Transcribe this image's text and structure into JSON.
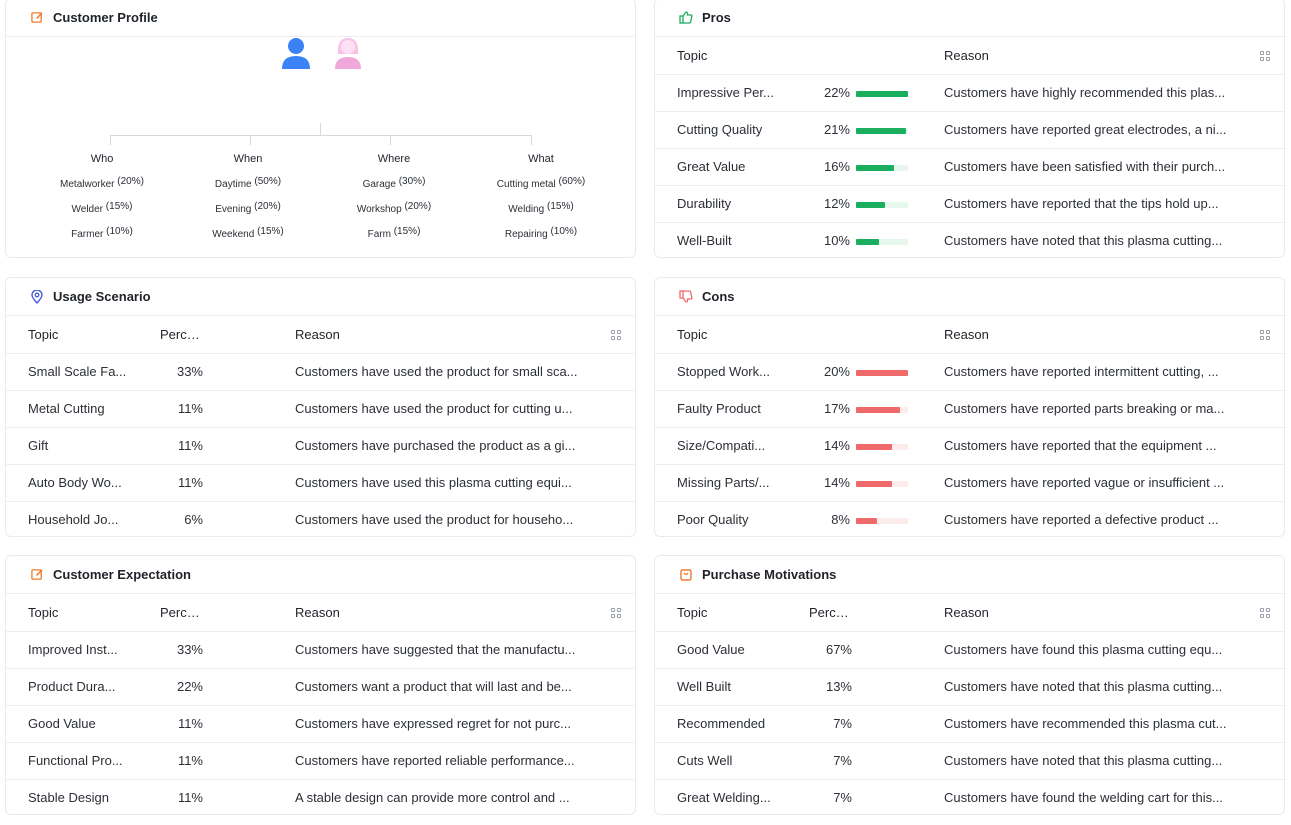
{
  "profile": {
    "title": "Customer Profile",
    "columns": [
      {
        "header": "Who",
        "items": [
          {
            "label": "Metalworker",
            "pct": "(20%)"
          },
          {
            "label": "Welder",
            "pct": "(15%)"
          },
          {
            "label": "Farmer",
            "pct": "(10%)"
          }
        ]
      },
      {
        "header": "When",
        "items": [
          {
            "label": "Daytime",
            "pct": "(50%)"
          },
          {
            "label": "Evening",
            "pct": "(20%)"
          },
          {
            "label": "Weekend",
            "pct": "(15%)"
          }
        ]
      },
      {
        "header": "Where",
        "items": [
          {
            "label": "Garage",
            "pct": "(30%)"
          },
          {
            "label": "Workshop",
            "pct": "(20%)"
          },
          {
            "label": "Farm",
            "pct": "(15%)"
          }
        ]
      },
      {
        "header": "What",
        "items": [
          {
            "label": "Cutting metal",
            "pct": "(60%)"
          },
          {
            "label": "Welding",
            "pct": "(15%)"
          },
          {
            "label": "Repairing",
            "pct": "(10%)"
          }
        ]
      }
    ]
  },
  "pros": {
    "title": "Pros",
    "headers": {
      "topic": "Topic",
      "reason": "Reason"
    },
    "color": "#1aae5f",
    "track": "#e6f7ed",
    "rows": [
      {
        "topic": "Impressive Per...",
        "pct": "22%",
        "value": 1.0,
        "reason": "Customers have highly recommended this plas..."
      },
      {
        "topic": "Cutting Quality",
        "pct": "21%",
        "value": 0.96,
        "reason": "Customers have reported great electrodes, a ni..."
      },
      {
        "topic": "Great Value",
        "pct": "16%",
        "value": 0.73,
        "reason": "Customers have been satisfied with their purch..."
      },
      {
        "topic": "Durability",
        "pct": "12%",
        "value": 0.55,
        "reason": "Customers have reported that the tips hold up..."
      },
      {
        "topic": "Well-Built",
        "pct": "10%",
        "value": 0.45,
        "reason": "Customers have noted that this plasma cutting..."
      }
    ]
  },
  "usage": {
    "title": "Usage Scenario",
    "headers": {
      "topic": "Topic",
      "percent": "Percent",
      "reason": "Reason"
    },
    "rows": [
      {
        "topic": "Small Scale Fa...",
        "pct": "33%",
        "reason": "Customers have used the product for small sca..."
      },
      {
        "topic": "Metal Cutting",
        "pct": "11%",
        "reason": "Customers have used the product for cutting u..."
      },
      {
        "topic": "Gift",
        "pct": "11%",
        "reason": "Customers have purchased the product as a gi..."
      },
      {
        "topic": "Auto Body Wo...",
        "pct": "11%",
        "reason": "Customers have used this plasma cutting equi..."
      },
      {
        "topic": "Household Jo...",
        "pct": "6%",
        "reason": "Customers have used the product for househo..."
      }
    ]
  },
  "cons": {
    "title": "Cons",
    "headers": {
      "topic": "Topic",
      "reason": "Reason"
    },
    "color": "#f0696a",
    "track": "#fdecec",
    "rows": [
      {
        "topic": "Stopped Work...",
        "pct": "20%",
        "value": 1.0,
        "reason": "Customers have reported intermittent cutting, ..."
      },
      {
        "topic": "Faulty Product",
        "pct": "17%",
        "value": 0.85,
        "reason": "Customers have reported parts breaking or ma..."
      },
      {
        "topic": "Size/Compati...",
        "pct": "14%",
        "value": 0.7,
        "reason": "Customers have reported that the equipment ..."
      },
      {
        "topic": "Missing Parts/...",
        "pct": "14%",
        "value": 0.7,
        "reason": "Customers have reported vague or insufficient ..."
      },
      {
        "topic": "Poor Quality",
        "pct": "8%",
        "value": 0.4,
        "reason": "Customers have reported a defective product ..."
      }
    ]
  },
  "expectation": {
    "title": "Customer Expectation",
    "headers": {
      "topic": "Topic",
      "percent": "Percent",
      "reason": "Reason"
    },
    "rows": [
      {
        "topic": "Improved Inst...",
        "pct": "33%",
        "reason": "Customers have suggested that the manufactu..."
      },
      {
        "topic": "Product Dura...",
        "pct": "22%",
        "reason": "Customers want a product that will last and be..."
      },
      {
        "topic": "Good Value",
        "pct": "11%",
        "reason": "Customers have expressed regret for not purc..."
      },
      {
        "topic": "Functional Pro...",
        "pct": "11%",
        "reason": "Customers have reported reliable performance..."
      },
      {
        "topic": "Stable Design",
        "pct": "11%",
        "reason": "A stable design can provide more control and ..."
      }
    ]
  },
  "motivations": {
    "title": "Purchase Motivations",
    "headers": {
      "topic": "Topic",
      "percent": "Percent",
      "reason": "Reason"
    },
    "rows": [
      {
        "topic": "Good Value",
        "pct": "67%",
        "reason": "Customers have found this plasma cutting equ..."
      },
      {
        "topic": "Well Built",
        "pct": "13%",
        "reason": "Customers have noted that this plasma cutting..."
      },
      {
        "topic": "Recommended",
        "pct": "7%",
        "reason": "Customers have recommended this plasma cut..."
      },
      {
        "topic": "Cuts Well",
        "pct": "7%",
        "reason": "Customers have noted that this plasma cutting..."
      },
      {
        "topic": "Great Welding...",
        "pct": "7%",
        "reason": "Customers have found the welding cart for this..."
      }
    ]
  },
  "icons": {
    "profile": "edit-icon",
    "pros": "thumbs-up-icon",
    "usage": "location-pin-icon",
    "cons": "thumbs-down-icon",
    "expectation": "edit-icon",
    "motivations": "shopping-bag-icon",
    "column_settings": "grid-icon"
  },
  "colors": {
    "edit_icon": "#f07a2a",
    "pros_icon": "#1aae5f",
    "usage_icon": "#4a5bd8",
    "cons_icon": "#f0696a",
    "male_avatar": "#3b82f6",
    "female_avatar": "#f0a8da"
  }
}
